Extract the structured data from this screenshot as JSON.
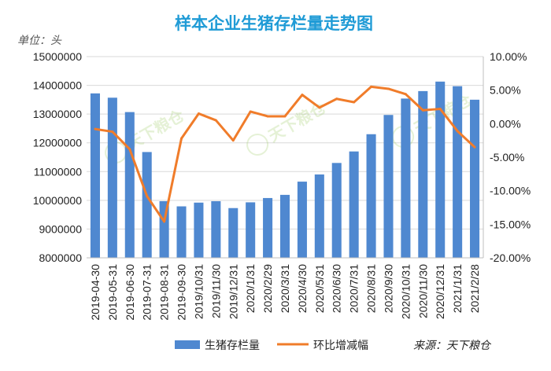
{
  "chart_data": {
    "type": "bar",
    "title": "样本企业生猪存栏量走势图",
    "unit_label": "单位：头",
    "source_label": "来源：天下粮仓",
    "categories": [
      "2019-04-30",
      "2019-05-31",
      "2019-06-30",
      "2019-07-31",
      "2019-08-31",
      "2019-09-30",
      "2019/10/31",
      "2019/11/30",
      "2019/12/31",
      "2020/1/31",
      "2020/2/29",
      "2020/3/31",
      "2020/4/30",
      "2020/5/31",
      "2020/6/30",
      "2020/7/31",
      "2020/8/31",
      "2020/9/30",
      "2020/10/31",
      "2020/11/30",
      "2020/12/31",
      "2021/1/31",
      "2021/2/28"
    ],
    "y_left": {
      "min": 8000000,
      "max": 15000000,
      "step": 1000000,
      "ticks": [
        "8000000",
        "9000000",
        "10000000",
        "11000000",
        "12000000",
        "13000000",
        "14000000",
        "15000000"
      ]
    },
    "y_right": {
      "min": -20,
      "max": 10,
      "step": 5,
      "ticks": [
        "-20.00%",
        "-15.00%",
        "-10.00%",
        "-5.00%",
        "0.00%",
        "5.00%",
        "10.00%"
      ]
    },
    "series": [
      {
        "name": "生猪存栏量",
        "kind": "bar",
        "axis": "left",
        "color": "#4f88d0",
        "values": [
          13720000,
          13570000,
          13070000,
          11680000,
          9970000,
          9790000,
          9920000,
          9970000,
          9730000,
          9930000,
          10080000,
          10190000,
          10650000,
          10900000,
          11300000,
          11700000,
          12300000,
          12970000,
          13540000,
          13800000,
          14130000,
          13970000,
          13500000
        ]
      },
      {
        "name": "环比增减幅",
        "kind": "line",
        "axis": "right",
        "color": "#f07c2a",
        "values": [
          -0.8,
          -1.2,
          -3.8,
          -10.8,
          -14.6,
          -2.2,
          1.5,
          0.5,
          -2.5,
          1.8,
          1.1,
          1.1,
          4.3,
          2.4,
          3.7,
          3.2,
          5.5,
          5.2,
          4.4,
          2.0,
          2.2,
          -1.1,
          -3.5
        ]
      }
    ]
  },
  "watermark": "天下粮仓"
}
